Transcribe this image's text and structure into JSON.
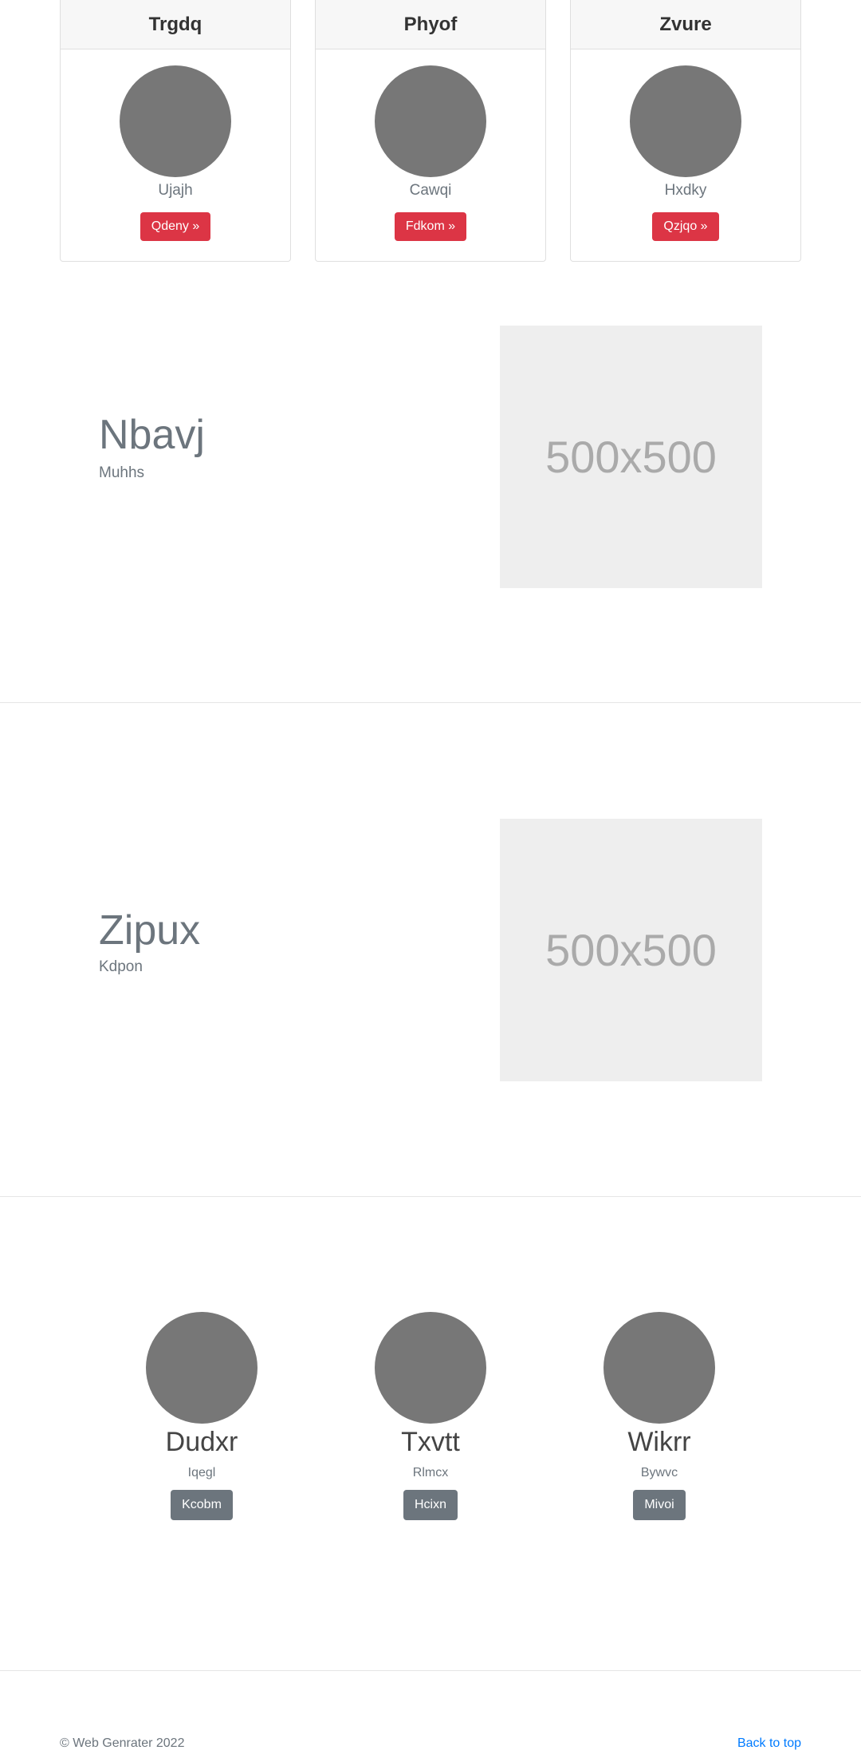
{
  "cards": [
    {
      "title": "Trgdq",
      "subtitle": "Ujajh",
      "button": "Qdeny »"
    },
    {
      "title": "Phyof",
      "subtitle": "Cawqi",
      "button": "Fdkom »"
    },
    {
      "title": "Zvure",
      "subtitle": "Hxdky",
      "button": "Qzjqo »"
    }
  ],
  "features": [
    {
      "title": "Nbavj",
      "subtitle": "Muhhs",
      "image_label": "500x500"
    },
    {
      "title": "Zipux",
      "subtitle": "Kdpon",
      "image_label": "500x500"
    }
  ],
  "team": [
    {
      "name": "Dudxr",
      "role": "Iqegl",
      "button": "Kcobm"
    },
    {
      "name": "Txvtt",
      "role": "Rlmcx",
      "button": "Hcixn"
    },
    {
      "name": "Wikrr",
      "role": "Bywvc",
      "button": "Mivoi"
    }
  ],
  "footer": {
    "copyright": "© Web Genrater 2022",
    "back_to_top": "Back to top"
  },
  "colors": {
    "danger": "#dc3545",
    "secondary": "#6c757d",
    "link": "#007bff",
    "avatar": "#777777",
    "placeholder_bg": "#eeeeee"
  }
}
